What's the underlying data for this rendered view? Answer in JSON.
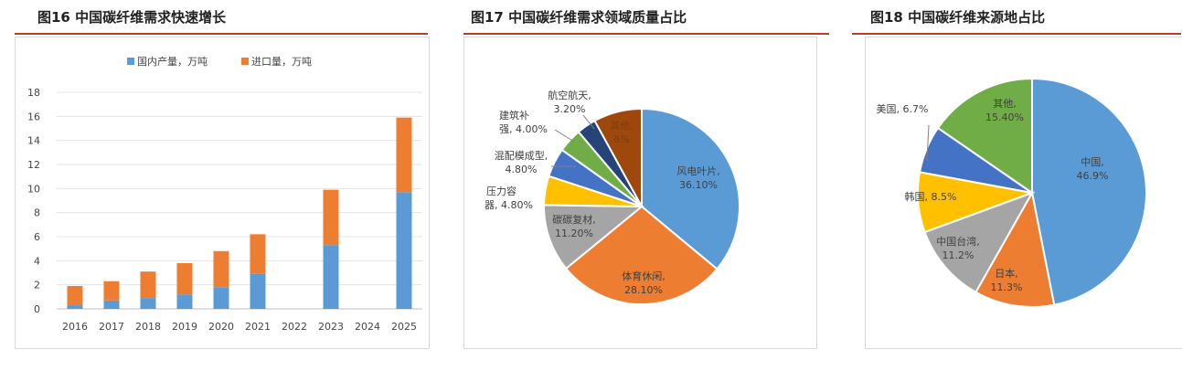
{
  "panels": {
    "fig16": {
      "title": "图16 中国碳纤维需求快速增长"
    },
    "fig17": {
      "title": "图17 中国碳纤维需求领域质量占比"
    },
    "fig18": {
      "title": "图18 中国碳纤维来源地占比"
    }
  },
  "colors": {
    "blue": "#5b9bd5",
    "orange": "#ed7d31",
    "gray": "#a5a5a5",
    "yellow": "#ffc000",
    "darkblue": "#4472c4",
    "green": "#70ad47",
    "navy": "#264478",
    "brown": "#9e480e",
    "rule": "#c0392b"
  },
  "chart_data": [
    {
      "type": "bar",
      "stacked": true,
      "categories": [
        "2016",
        "2017",
        "2018",
        "2019",
        "2020",
        "2021",
        "2022",
        "2023",
        "2024",
        "2025"
      ],
      "series": [
        {
          "name": "国内产量，万吨",
          "color": "#5b9bd5",
          "values": [
            0.3,
            0.7,
            0.9,
            1.2,
            1.8,
            2.9,
            0,
            5.3,
            0,
            9.7
          ]
        },
        {
          "name": "进口量，万吨",
          "color": "#ed7d31",
          "values": [
            1.6,
            1.6,
            2.2,
            2.6,
            3.0,
            3.3,
            0,
            4.6,
            0,
            6.2
          ]
        }
      ],
      "ylim": [
        0,
        18
      ],
      "yticks": [
        "0",
        "2",
        "4",
        "6",
        "8",
        "10",
        "12",
        "14",
        "16",
        "18"
      ],
      "grid": true,
      "legend": "top"
    },
    {
      "type": "pie",
      "slices": [
        {
          "label": "风电叶片,",
          "value_label": "36.10%",
          "value": 36.1,
          "color": "#5b9bd5"
        },
        {
          "label": "体育休闲,",
          "value_label": "28.10%",
          "value": 28.1,
          "color": "#ed7d31"
        },
        {
          "label": "碳碳复材,",
          "value_label": "11.20%",
          "value": 11.2,
          "color": "#a5a5a5"
        },
        {
          "label": "压力容",
          "label2": "器, 4.80%",
          "value": 4.8,
          "color": "#ffc000"
        },
        {
          "label": "混配模成型,",
          "value_label": "4.80%",
          "value": 4.8,
          "color": "#4472c4"
        },
        {
          "label": "建筑补",
          "label2": "强, 4.00%",
          "value": 4.0,
          "color": "#70ad47"
        },
        {
          "label": "航空航天,",
          "value_label": "3.20%",
          "value": 3.2,
          "color": "#264478"
        },
        {
          "label": "其他,",
          "value_label": "8%",
          "value": 8.0,
          "color": "#9e480e"
        }
      ]
    },
    {
      "type": "pie",
      "slices": [
        {
          "label": "中国,",
          "value_label": "46.9%",
          "value": 46.9,
          "color": "#5b9bd5"
        },
        {
          "label": "日本,",
          "value_label": "11.3%",
          "value": 11.3,
          "color": "#ed7d31"
        },
        {
          "label": "中国台湾,",
          "value_label": "11.2%",
          "value": 11.2,
          "color": "#a5a5a5"
        },
        {
          "label": "韩国, 8.5%",
          "value": 8.5,
          "color": "#ffc000"
        },
        {
          "label": "美国, 6.7%",
          "value": 6.7,
          "color": "#4472c4"
        },
        {
          "label": "其他,",
          "value_label": "15.40%",
          "value": 15.4,
          "color": "#70ad47"
        }
      ]
    }
  ]
}
